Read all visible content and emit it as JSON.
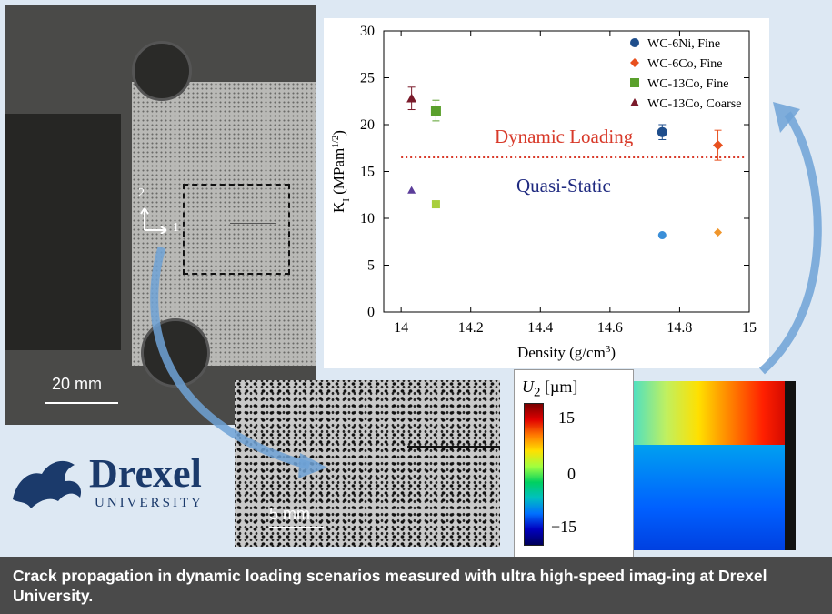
{
  "photo": {
    "axis_1": "1",
    "axis_2": "2",
    "scale": "20 mm"
  },
  "speckle": {
    "scale": "5 mm"
  },
  "colorbar": {
    "title": "U",
    "title_sub": "2",
    "title_unit": "[µm]",
    "ticks": [
      "15",
      "0",
      "−15"
    ]
  },
  "logo": {
    "word": "Drexel",
    "sub": "UNIVERSITY",
    "color": "#1b3a6b"
  },
  "caption": "Crack propagation in dynamic loading scenarios measured with ultra high-speed imag-ing at Drexel University.",
  "chart_data": {
    "type": "scatter",
    "xlabel": "Density (g/cm",
    "xlabel_sup": "3",
    "xlabel_end": ")",
    "ylabel": "K",
    "ylabel_sub": "I",
    "ylabel_unit": " (MPam",
    "ylabel_sup": "1/2",
    "ylabel_end": ")",
    "xlim": [
      13.95,
      15.0
    ],
    "ylim": [
      0,
      30
    ],
    "xticks": [
      14,
      14.2,
      14.4,
      14.6,
      14.8,
      15
    ],
    "xtick_labels": [
      "14",
      "14.2",
      "14.4",
      "14.6",
      "14.8",
      "15"
    ],
    "yticks": [
      0,
      5,
      10,
      15,
      20,
      25,
      30
    ],
    "threshold": 16.5,
    "threshold_color": "#d83a2a",
    "annotations": {
      "dynamic": "Dynamic Loading",
      "quasi": "Quasi-Static"
    },
    "legend_position": "top-right",
    "series": [
      {
        "name": "WC-6Ni, Fine",
        "marker": "circle",
        "color": "#1f4e8c",
        "quasi_color": "#3b8fd8",
        "x": 14.75,
        "dynamic": 19.2,
        "dynamic_err": 0.8,
        "quasi": 8.2
      },
      {
        "name": "WC-6Co, Fine",
        "marker": "diamond",
        "color": "#e8501e",
        "quasi_color": "#f0962c",
        "x": 14.91,
        "dynamic": 17.8,
        "dynamic_err": 1.6,
        "quasi": 8.5
      },
      {
        "name": "WC-13Co, Fine",
        "marker": "square",
        "color": "#5aa02c",
        "quasi_color": "#a8cf3c",
        "x": 14.1,
        "dynamic": 21.5,
        "dynamic_err": 1.1,
        "quasi": 11.5
      },
      {
        "name": "WC-13Co, Coarse",
        "marker": "triangle",
        "color": "#7a1a2a",
        "quasi_color": "#5b3d9a",
        "x": 14.03,
        "dynamic": 22.8,
        "dynamic_err": 1.2,
        "quasi": 13.0
      }
    ]
  }
}
